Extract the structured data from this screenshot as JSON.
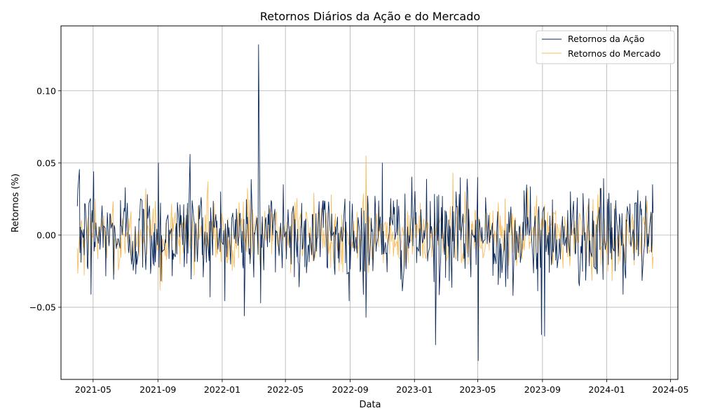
{
  "chart_data": {
    "type": "line",
    "title": "Retornos Diários da Ação e do Mercado",
    "xlabel": "Data",
    "ylabel": "Retornos (%)",
    "x_range": [
      "2021-04-01",
      "2024-03-31"
    ],
    "xlim": [
      "2021-03-01",
      "2024-05-15"
    ],
    "ylim": [
      -0.1,
      0.145
    ],
    "x_ticks": [
      "2021-05",
      "2021-09",
      "2022-01",
      "2022-05",
      "2022-09",
      "2023-01",
      "2023-05",
      "2023-09",
      "2024-01",
      "2024-05"
    ],
    "y_ticks": [
      -0.05,
      0.0,
      0.05,
      0.1
    ],
    "y_tick_labels": [
      "−0.05",
      "0.00",
      "0.05",
      "0.10"
    ],
    "grid": true,
    "legend_position": "top-right",
    "series": [
      {
        "name": "Retornos da Ação",
        "color": "#0b2a5c",
        "stroke_style": "thin",
        "typical_range": [
          -0.035,
          0.035
        ],
        "notable_points": [
          {
            "x": "2021-04-01",
            "y": 0.02
          },
          {
            "x": "2021-04-02",
            "y": 0.031
          },
          {
            "x": "2021-04-27",
            "y": -0.041
          },
          {
            "x": "2021-05-02",
            "y": 0.044
          },
          {
            "x": "2021-07-01",
            "y": 0.033
          },
          {
            "x": "2021-09-02",
            "y": 0.05
          },
          {
            "x": "2021-11-01",
            "y": 0.056
          },
          {
            "x": "2022-02-12",
            "y": -0.056
          },
          {
            "x": "2022-03-11",
            "y": 0.132
          },
          {
            "x": "2022-03-15",
            "y": -0.047
          },
          {
            "x": "2022-04-27",
            "y": 0.035
          },
          {
            "x": "2022-10-01",
            "y": -0.057
          },
          {
            "x": "2022-11-01",
            "y": 0.05
          },
          {
            "x": "2023-02-10",
            "y": -0.076
          },
          {
            "x": "2023-05-01",
            "y": 0.04
          },
          {
            "x": "2023-05-02",
            "y": -0.087
          },
          {
            "x": "2023-08-30",
            "y": -0.069
          },
          {
            "x": "2023-09-05",
            "y": -0.07
          },
          {
            "x": "2024-02-01",
            "y": -0.041
          },
          {
            "x": "2024-03-28",
            "y": 0.035
          }
        ]
      },
      {
        "name": "Retornos do Mercado",
        "color": "#f5a623",
        "stroke_style": "thin",
        "typical_range": [
          -0.025,
          0.025
        ],
        "notable_points": [
          {
            "x": "2021-09-05",
            "y": -0.038
          },
          {
            "x": "2021-12-05",
            "y": 0.037
          },
          {
            "x": "2022-10-01",
            "y": 0.055
          },
          {
            "x": "2023-03-15",
            "y": 0.043
          }
        ]
      }
    ]
  }
}
